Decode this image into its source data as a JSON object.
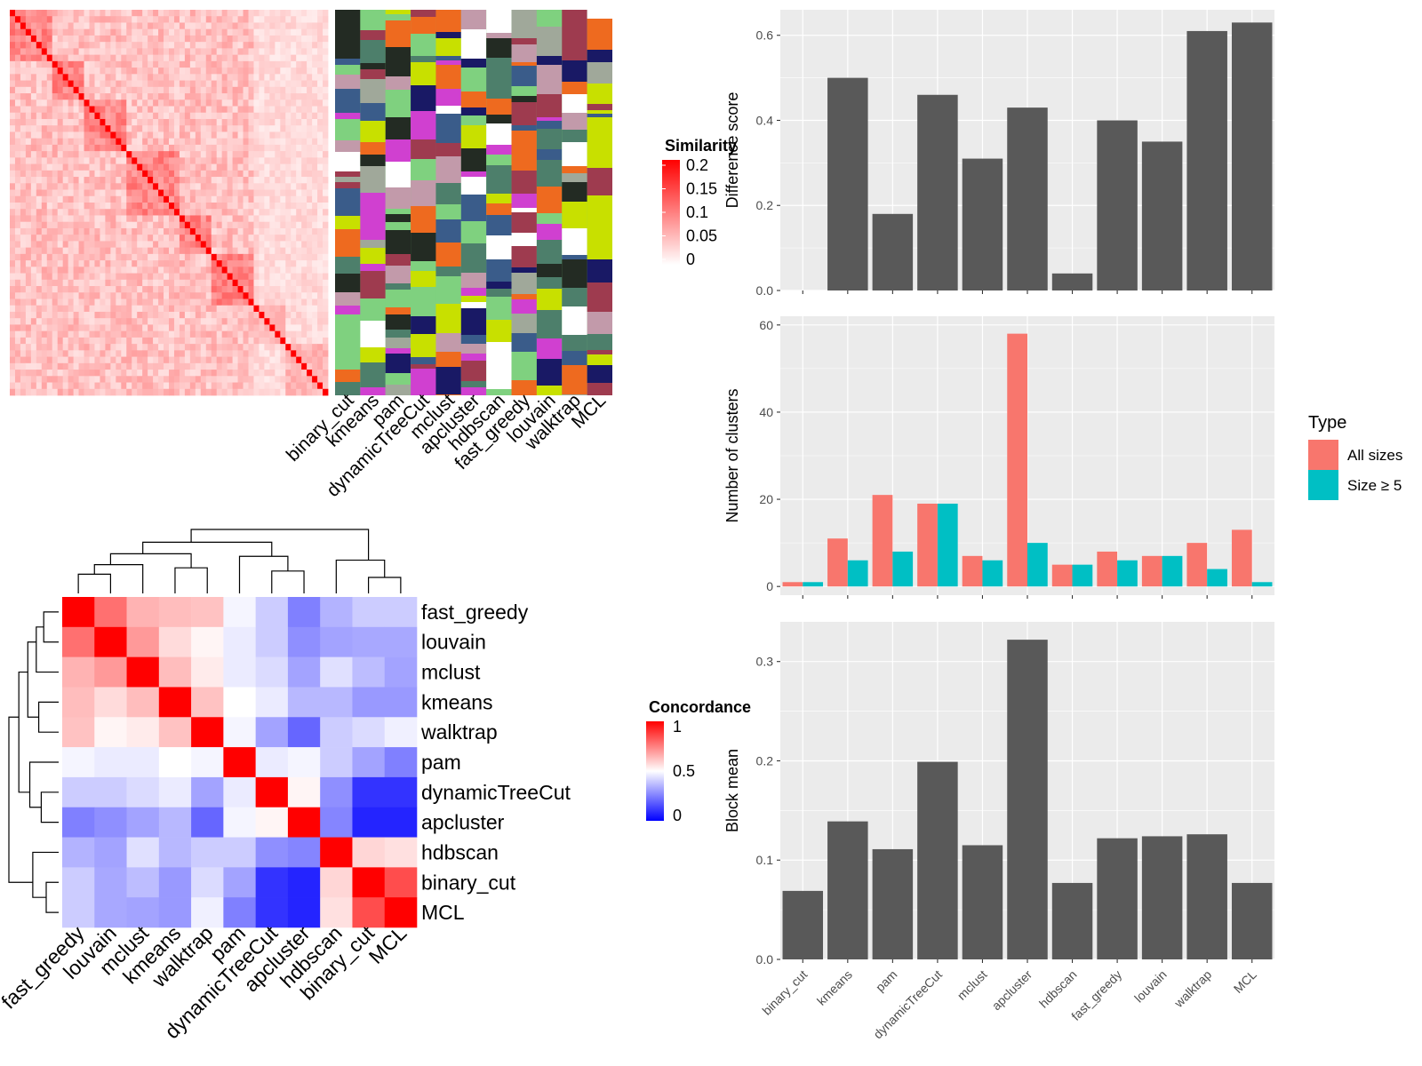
{
  "methods": [
    "binary_cut",
    "kmeans",
    "pam",
    "dynamicTreeCut",
    "mclust",
    "apcluster",
    "hdbscan",
    "fast_greedy",
    "louvain",
    "walktrap",
    "MCL"
  ],
  "colors": {
    "panel": "#ebebeb",
    "grid": "#ffffff",
    "bar": "#595959",
    "all_sizes": "#f8766d",
    "size5": "#00bfc4",
    "heat_high": "#ff0000",
    "heat_mid": "#ffffff",
    "heat_low": "#0000ff"
  },
  "similarity_heatmap": {
    "legend_title": "Similarity",
    "legend_ticks": [
      "0.2",
      "0.15",
      "0.1",
      "0.05",
      "0"
    ]
  },
  "membership_panel": {
    "columns": [
      "binary_cut",
      "kmeans",
      "pam",
      "dynamicTreeCut",
      "mclust",
      "apcluster",
      "hdbscan",
      "fast_greedy",
      "louvain",
      "walktrap",
      "MCL"
    ]
  },
  "concordance": {
    "legend_title": "Concordance",
    "legend_ticks": [
      "1",
      "0.5",
      "0"
    ],
    "row_labels": [
      "fast_greedy",
      "louvain",
      "mclust",
      "kmeans",
      "walktrap",
      "pam",
      "dynamicTreeCut",
      "apcluster",
      "hdbscan",
      "binary_cut",
      "MCL"
    ],
    "col_labels": [
      "fast_greedy",
      "louvain",
      "mclust",
      "kmeans",
      "walktrap",
      "pam",
      "dynamicTreeCut",
      "apcluster",
      "hdbscan",
      "binary_cut",
      "MCL"
    ],
    "matrix": [
      [
        1.0,
        0.78,
        0.65,
        0.63,
        0.62,
        0.48,
        0.4,
        0.25,
        0.35,
        0.4,
        0.4
      ],
      [
        0.78,
        1.0,
        0.7,
        0.57,
        0.52,
        0.46,
        0.4,
        0.28,
        0.32,
        0.33,
        0.33
      ],
      [
        0.65,
        0.7,
        1.0,
        0.63,
        0.54,
        0.46,
        0.43,
        0.32,
        0.44,
        0.37,
        0.32
      ],
      [
        0.63,
        0.57,
        0.63,
        1.0,
        0.62,
        0.5,
        0.46,
        0.36,
        0.36,
        0.3,
        0.3
      ],
      [
        0.62,
        0.52,
        0.54,
        0.62,
        1.0,
        0.48,
        0.32,
        0.2,
        0.4,
        0.43,
        0.47
      ],
      [
        0.48,
        0.46,
        0.46,
        0.5,
        0.48,
        1.0,
        0.46,
        0.48,
        0.4,
        0.32,
        0.25
      ],
      [
        0.4,
        0.4,
        0.43,
        0.46,
        0.32,
        0.46,
        1.0,
        0.52,
        0.28,
        0.1,
        0.1
      ],
      [
        0.25,
        0.28,
        0.32,
        0.36,
        0.2,
        0.48,
        0.52,
        1.0,
        0.26,
        0.07,
        0.07
      ],
      [
        0.35,
        0.32,
        0.44,
        0.36,
        0.4,
        0.4,
        0.28,
        0.26,
        1.0,
        0.58,
        0.56
      ],
      [
        0.4,
        0.33,
        0.37,
        0.3,
        0.43,
        0.32,
        0.1,
        0.07,
        0.58,
        1.0,
        0.85
      ],
      [
        0.4,
        0.33,
        0.32,
        0.3,
        0.47,
        0.25,
        0.1,
        0.07,
        0.56,
        0.85,
        1.0
      ]
    ]
  },
  "chart_data": [
    {
      "type": "bar",
      "categories": [
        "binary_cut",
        "kmeans",
        "pam",
        "dynamicTreeCut",
        "mclust",
        "apcluster",
        "hdbscan",
        "fast_greedy",
        "louvain",
        "walktrap",
        "MCL"
      ],
      "values": [
        0.0,
        0.5,
        0.18,
        0.46,
        0.31,
        0.43,
        0.04,
        0.4,
        0.35,
        0.61,
        0.63
      ],
      "ylabel": "Difference score",
      "ylim": [
        0,
        0.66
      ],
      "yticks": [
        "0.0",
        "0.2",
        "0.4",
        "0.6"
      ],
      "grid": true
    },
    {
      "type": "bar",
      "categories": [
        "binary_cut",
        "kmeans",
        "pam",
        "dynamicTreeCut",
        "mclust",
        "apcluster",
        "hdbscan",
        "fast_greedy",
        "louvain",
        "walktrap",
        "MCL"
      ],
      "series": [
        {
          "name": "All sizes",
          "values": [
            1,
            11,
            21,
            19,
            7,
            58,
            5,
            8,
            7,
            10,
            13
          ]
        },
        {
          "name": "Size ≥ 5",
          "values": [
            1,
            6,
            8,
            19,
            6,
            10,
            5,
            6,
            7,
            4,
            1
          ]
        }
      ],
      "ylabel": "Number of clusters",
      "ylim": [
        -2,
        62
      ],
      "yticks": [
        "0",
        "20",
        "40",
        "60"
      ],
      "legend_title": "Type",
      "legend_position": "right",
      "grid": true
    },
    {
      "type": "bar",
      "categories": [
        "binary_cut",
        "kmeans",
        "pam",
        "dynamicTreeCut",
        "mclust",
        "apcluster",
        "hdbscan",
        "fast_greedy",
        "louvain",
        "walktrap",
        "MCL"
      ],
      "values": [
        0.069,
        0.139,
        0.111,
        0.199,
        0.115,
        0.322,
        0.077,
        0.122,
        0.124,
        0.126,
        0.077
      ],
      "ylabel": "Block mean",
      "ylim": [
        0,
        0.34
      ],
      "yticks": [
        "0.0",
        "0.1",
        "0.2",
        "0.3"
      ],
      "grid": true
    }
  ]
}
